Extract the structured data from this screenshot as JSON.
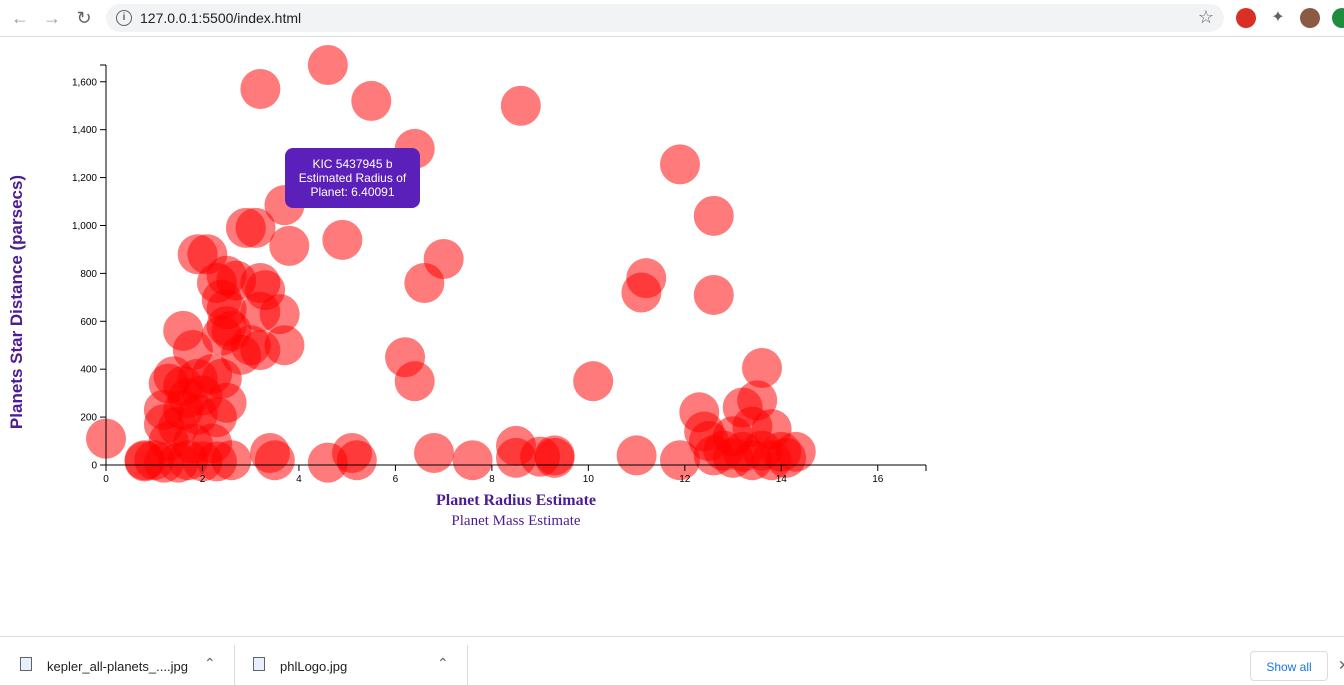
{
  "browser": {
    "url": "127.0.0.1:5500/index.html",
    "back_icon": "arrow-left-icon",
    "forward_icon": "arrow-right-icon",
    "reload_icon": "reload-icon",
    "info_icon": "info-icon",
    "bookmark_icon": "star-icon"
  },
  "tooltip": {
    "line1": "KIC 5437945 b",
    "line2": "Estimated Radius of",
    "line3": "Planet: 6.40091"
  },
  "chart_data": {
    "type": "scatter",
    "xlabel": "Planet Radius Estimate",
    "xlabel_alt": "Planet Mass Estimate",
    "ylabel": "Planets Star Distance (parsecs)",
    "xlim": [
      0,
      17
    ],
    "ylim": [
      0,
      1670
    ],
    "x_ticks": [
      0,
      2,
      4,
      6,
      8,
      10,
      12,
      14,
      16
    ],
    "y_ticks": [
      0,
      200,
      400,
      600,
      800,
      1000,
      1200,
      1400,
      1600
    ],
    "y_tick_labels": [
      "0",
      "200",
      "400",
      "600",
      "800",
      "1,000",
      "1,200",
      "1,400",
      "1,600"
    ],
    "point_color": "#ff0000",
    "points": [
      [
        0.0,
        110
      ],
      [
        4.6,
        1670
      ],
      [
        3.2,
        1570
      ],
      [
        5.5,
        1520
      ],
      [
        8.6,
        1500
      ],
      [
        6.4,
        1320
      ],
      [
        11.9,
        1255
      ],
      [
        3.7,
        1085
      ],
      [
        2.9,
        990
      ],
      [
        3.1,
        990
      ],
      [
        12.6,
        1040
      ],
      [
        4.9,
        940
      ],
      [
        3.8,
        915
      ],
      [
        1.9,
        880
      ],
      [
        2.1,
        880
      ],
      [
        7.0,
        860
      ],
      [
        2.5,
        790
      ],
      [
        2.7,
        770
      ],
      [
        2.3,
        760
      ],
      [
        3.2,
        760
      ],
      [
        3.3,
        730
      ],
      [
        6.6,
        760
      ],
      [
        11.2,
        780
      ],
      [
        11.1,
        720
      ],
      [
        12.6,
        710
      ],
      [
        2.4,
        690
      ],
      [
        2.5,
        650
      ],
      [
        3.2,
        640
      ],
      [
        3.6,
        630
      ],
      [
        2.5,
        580
      ],
      [
        2.6,
        560
      ],
      [
        1.6,
        560
      ],
      [
        2.4,
        540
      ],
      [
        3.0,
        500
      ],
      [
        3.2,
        480
      ],
      [
        3.7,
        500
      ],
      [
        2.8,
        460
      ],
      [
        1.8,
        480
      ],
      [
        6.2,
        450
      ],
      [
        6.4,
        350
      ],
      [
        10.1,
        350
      ],
      [
        13.6,
        405
      ],
      [
        1.4,
        370
      ],
      [
        1.9,
        360
      ],
      [
        2.2,
        380
      ],
      [
        1.3,
        340
      ],
      [
        1.6,
        330
      ],
      [
        2.4,
        360
      ],
      [
        1.7,
        280
      ],
      [
        2.0,
        290
      ],
      [
        2.5,
        260
      ],
      [
        1.2,
        230
      ],
      [
        1.6,
        230
      ],
      [
        1.9,
        210
      ],
      [
        13.5,
        270
      ],
      [
        12.3,
        220
      ],
      [
        13.2,
        240
      ],
      [
        2.3,
        200
      ],
      [
        1.2,
        170
      ],
      [
        1.5,
        160
      ],
      [
        12.4,
        140
      ],
      [
        13.8,
        150
      ],
      [
        13.4,
        160
      ],
      [
        13.0,
        120
      ],
      [
        1.3,
        100
      ],
      [
        1.8,
        90
      ],
      [
        2.2,
        90
      ],
      [
        12.5,
        100
      ],
      [
        8.5,
        80
      ],
      [
        3.4,
        50
      ],
      [
        5.1,
        50
      ],
      [
        6.8,
        50
      ],
      [
        9.3,
        40
      ],
      [
        11.0,
        40
      ],
      [
        9.0,
        35
      ],
      [
        12.8,
        60
      ],
      [
        13.2,
        55
      ],
      [
        13.6,
        60
      ],
      [
        14.0,
        55
      ],
      [
        14.3,
        55
      ],
      [
        12.6,
        40
      ],
      [
        13.0,
        30
      ],
      [
        13.4,
        20
      ],
      [
        13.8,
        20
      ],
      [
        14.1,
        30
      ],
      [
        0.8,
        20
      ],
      [
        1.0,
        20
      ],
      [
        1.2,
        10
      ],
      [
        1.5,
        10
      ],
      [
        1.7,
        20
      ],
      [
        2.0,
        15
      ],
      [
        2.3,
        15
      ],
      [
        2.6,
        20
      ],
      [
        3.5,
        20
      ],
      [
        4.6,
        10
      ],
      [
        5.2,
        20
      ],
      [
        7.6,
        20
      ],
      [
        8.5,
        30
      ],
      [
        9.3,
        30
      ],
      [
        11.9,
        20
      ],
      [
        0.8,
        15
      ]
    ]
  },
  "downloads": {
    "items": [
      {
        "name": "kepler_all-planets_....jpg"
      },
      {
        "name": "phlLogo.jpg"
      }
    ],
    "show_all": "Show all"
  }
}
